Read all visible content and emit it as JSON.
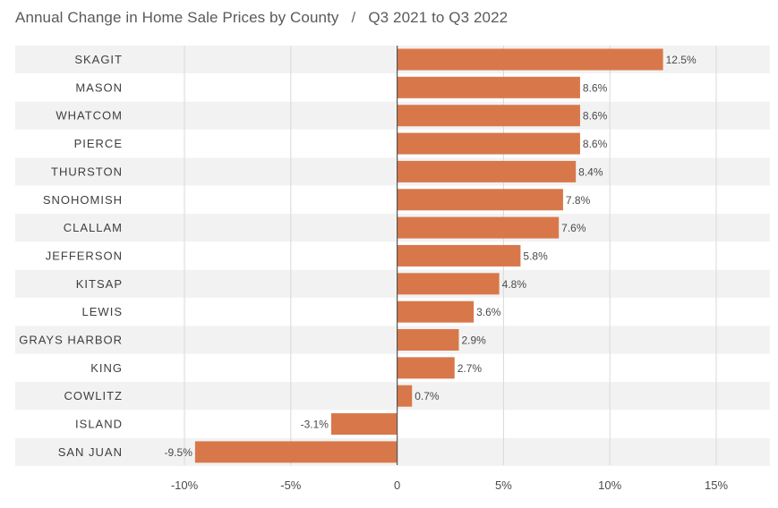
{
  "chart_data": {
    "type": "bar",
    "orientation": "horizontal",
    "title": "Annual Change in Home Sale Prices by County",
    "subtitle": "Q3 2021 to Q3 2022",
    "title_separator": "/",
    "categories": [
      "SKAGIT",
      "MASON",
      "WHATCOM",
      "PIERCE",
      "THURSTON",
      "SNOHOMISH",
      "CLALLAM",
      "JEFFERSON",
      "KITSAP",
      "LEWIS",
      "GRAYS HARBOR",
      "KING",
      "COWLITZ",
      "ISLAND",
      "SAN JUAN"
    ],
    "values": [
      12.5,
      8.6,
      8.6,
      8.6,
      8.4,
      7.8,
      7.6,
      5.8,
      4.8,
      3.6,
      2.9,
      2.7,
      0.7,
      -3.1,
      -9.5
    ],
    "value_labels": [
      "12.5%",
      "8.6%",
      "8.6%",
      "8.6%",
      "8.4%",
      "7.8%",
      "7.6%",
      "5.8%",
      "4.8%",
      "3.6%",
      "2.9%",
      "2.7%",
      "0.7%",
      "-3.1%",
      "-9.5%"
    ],
    "xlim": [
      -10,
      15
    ],
    "xticks": [
      -10,
      -5,
      0,
      5,
      10,
      15
    ],
    "xtick_labels": [
      "-10%",
      "-5%",
      "0",
      "5%",
      "10%",
      "15%"
    ],
    "xlabel": "",
    "ylabel": "",
    "grid": true,
    "legend": "none",
    "colors": {
      "bar": "#d8784a",
      "band": "#f2f2f2",
      "grid": "#d9d9d9",
      "zero_line": "#555555"
    }
  }
}
